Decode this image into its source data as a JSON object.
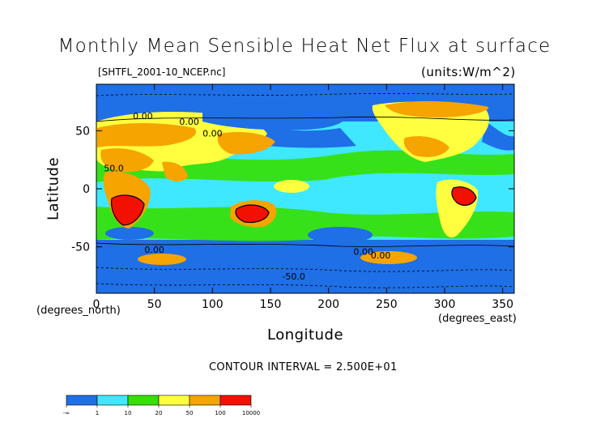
{
  "chart_data": {
    "type": "heatmap",
    "title": "Monthly Mean Sensible Heat Net Flux at surface",
    "file_label": "[SHTFL_2001-10_NCEP.nc]",
    "units_label": "(units:W/m^2)",
    "xlabel": "Longitude",
    "ylabel": "Latitude",
    "x_unit": "(degrees_east)",
    "y_unit": "(degrees_north)",
    "xlim": [
      0,
      360
    ],
    "ylim": [
      -90,
      90
    ],
    "x_ticks": [
      0,
      50,
      100,
      150,
      200,
      250,
      300,
      350
    ],
    "y_ticks": [
      50,
      0,
      -50
    ],
    "contour_interval_text": "CONTOUR INTERVAL = 2.500E+01",
    "contour_labels": [
      "0.00",
      "0.00",
      "0.00",
      "0.00",
      "0.00",
      "0.00",
      "-50.0",
      "50.0"
    ],
    "colorbar": {
      "labels": [
        "-∞",
        "1",
        "10",
        "20",
        "50",
        "100",
        "10000"
      ],
      "bins": [
        {
          "from": "-∞",
          "to": "1",
          "color": "#1f6fe6"
        },
        {
          "from": "1",
          "to": "10",
          "color": "#3fe8ff"
        },
        {
          "from": "10",
          "to": "20",
          "color": "#36e000"
        },
        {
          "from": "20",
          "to": "50",
          "color": "#ffff40"
        },
        {
          "from": "50",
          "to": "100",
          "color": "#f5a400"
        },
        {
          "from": "100",
          "to": "10000",
          "color": "#f21000"
        }
      ]
    }
  }
}
